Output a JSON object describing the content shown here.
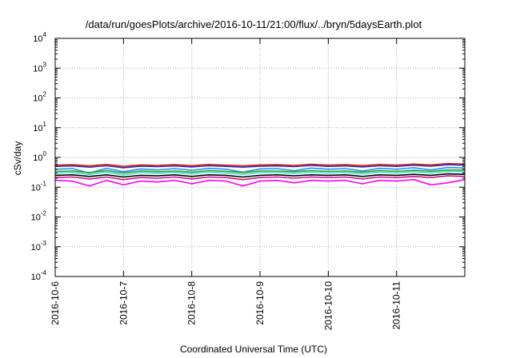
{
  "chart_data": {
    "type": "line",
    "title": "/data/run/goesPlots/archive/2016-10-11/21:00/flux/../bryn/5daysEarth.plot",
    "xlabel": "Coordinated Universal Time (UTC)",
    "ylabel": "cSv/day",
    "xlim": [
      "2016-10-06T00:00",
      "2016-10-11T23:59"
    ],
    "ylim": [
      0.0001,
      10000
    ],
    "yscale": "log",
    "grid": true,
    "x_ticks": [
      "2016-10-6",
      "2016-10-7",
      "2016-10-8",
      "2016-10-9",
      "2016-10-10",
      "2016-10-11"
    ],
    "y_ticks": [
      {
        "base": "10",
        "exp": "4"
      },
      {
        "base": "10",
        "exp": "3"
      },
      {
        "base": "10",
        "exp": "2"
      },
      {
        "base": "10",
        "exp": "1"
      },
      {
        "base": "10",
        "exp": "0"
      },
      {
        "base": "10",
        "exp": "-1"
      },
      {
        "base": "10",
        "exp": "-2"
      },
      {
        "base": "10",
        "exp": "-3"
      },
      {
        "base": "10",
        "exp": "-4"
      }
    ],
    "x_dates": [
      "2016-10-06T00:00",
      "2016-10-06T06:00",
      "2016-10-06T12:00",
      "2016-10-06T18:00",
      "2016-10-07T00:00",
      "2016-10-07T06:00",
      "2016-10-07T12:00",
      "2016-10-07T18:00",
      "2016-10-08T00:00",
      "2016-10-08T06:00",
      "2016-10-08T12:00",
      "2016-10-08T18:00",
      "2016-10-09T00:00",
      "2016-10-09T06:00",
      "2016-10-09T12:00",
      "2016-10-09T18:00",
      "2016-10-10T00:00",
      "2016-10-10T06:00",
      "2016-10-10T12:00",
      "2016-10-10T18:00",
      "2016-10-11T00:00",
      "2016-10-11T06:00",
      "2016-10-11T12:00",
      "2016-10-11T18:00",
      "2016-10-11T23:59"
    ],
    "series": [
      {
        "color": "#e41a1c",
        "values": [
          0.55,
          0.57,
          0.52,
          0.58,
          0.5,
          0.56,
          0.54,
          0.57,
          0.53,
          0.58,
          0.55,
          0.52,
          0.56,
          0.57,
          0.54,
          0.59,
          0.55,
          0.57,
          0.53,
          0.58,
          0.55,
          0.6,
          0.56,
          0.62,
          0.6
        ]
      },
      {
        "color": "#3a2fa0",
        "values": [
          0.5,
          0.52,
          0.47,
          0.53,
          0.45,
          0.51,
          0.49,
          0.52,
          0.48,
          0.53,
          0.5,
          0.47,
          0.51,
          0.52,
          0.49,
          0.54,
          0.5,
          0.52,
          0.48,
          0.53,
          0.5,
          0.55,
          0.51,
          0.57,
          0.55
        ]
      },
      {
        "color": "#1e90ff",
        "values": [
          0.4,
          0.42,
          0.3,
          0.43,
          0.33,
          0.41,
          0.38,
          0.42,
          0.37,
          0.43,
          0.4,
          0.32,
          0.41,
          0.42,
          0.36,
          0.44,
          0.4,
          0.42,
          0.35,
          0.43,
          0.4,
          0.45,
          0.38,
          0.46,
          0.44
        ]
      },
      {
        "color": "#2ca02c",
        "values": [
          0.34,
          0.35,
          0.31,
          0.36,
          0.3,
          0.35,
          0.33,
          0.35,
          0.32,
          0.36,
          0.34,
          0.31,
          0.35,
          0.35,
          0.33,
          0.36,
          0.34,
          0.35,
          0.32,
          0.36,
          0.34,
          0.37,
          0.34,
          0.38,
          0.37
        ]
      },
      {
        "color": "#40e0d0",
        "values": [
          0.3,
          0.31,
          0.27,
          0.32,
          0.26,
          0.31,
          0.29,
          0.31,
          0.28,
          0.32,
          0.3,
          0.27,
          0.31,
          0.31,
          0.29,
          0.32,
          0.3,
          0.31,
          0.28,
          0.32,
          0.3,
          0.33,
          0.3,
          0.34,
          0.33
        ]
      },
      {
        "color": "#000000",
        "values": [
          0.25,
          0.26,
          0.23,
          0.26,
          0.22,
          0.25,
          0.24,
          0.26,
          0.23,
          0.26,
          0.25,
          0.22,
          0.25,
          0.26,
          0.24,
          0.26,
          0.25,
          0.26,
          0.23,
          0.26,
          0.25,
          0.27,
          0.25,
          0.28,
          0.27
        ]
      },
      {
        "color": "#c71585",
        "values": [
          0.21,
          0.22,
          0.19,
          0.22,
          0.18,
          0.21,
          0.2,
          0.22,
          0.19,
          0.22,
          0.21,
          0.18,
          0.21,
          0.22,
          0.2,
          0.22,
          0.21,
          0.22,
          0.19,
          0.22,
          0.21,
          0.23,
          0.21,
          0.24,
          0.23
        ]
      },
      {
        "color": "#ff00ff",
        "values": [
          0.17,
          0.16,
          0.11,
          0.17,
          0.12,
          0.16,
          0.15,
          0.17,
          0.13,
          0.17,
          0.16,
          0.11,
          0.16,
          0.17,
          0.14,
          0.17,
          0.16,
          0.17,
          0.13,
          0.17,
          0.16,
          0.18,
          0.12,
          0.14,
          0.18
        ]
      }
    ]
  }
}
